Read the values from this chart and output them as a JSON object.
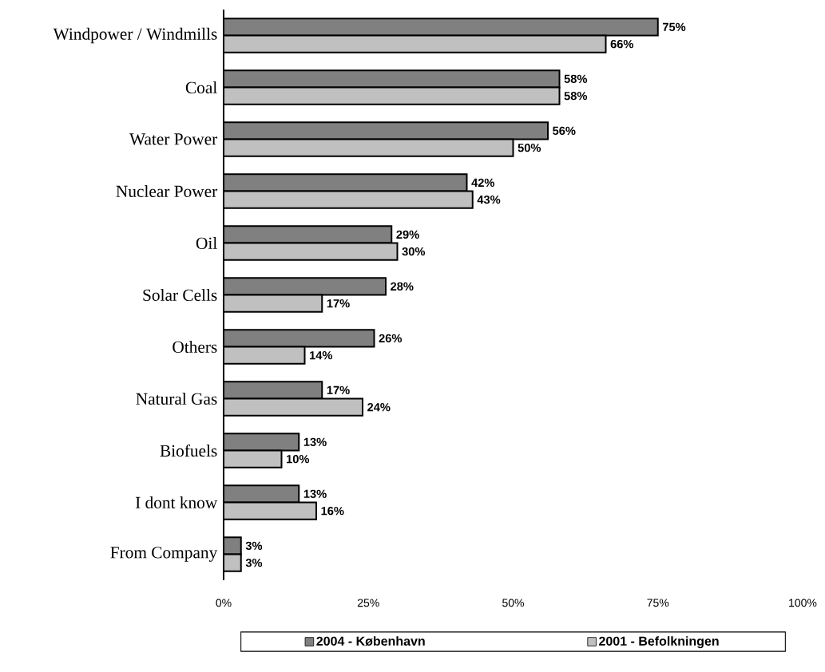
{
  "chart_data": {
    "type": "bar",
    "orientation": "horizontal",
    "categories": [
      "Windpower / Windmills",
      "Coal",
      "Water Power",
      "Nuclear Power",
      "Oil",
      "Solar Cells",
      "Others",
      "Natural Gas",
      "Biofuels",
      "I dont know",
      "From Company"
    ],
    "series": [
      {
        "name": "2004 - København",
        "color": "#808080",
        "values": [
          75,
          58,
          56,
          42,
          29,
          28,
          26,
          17,
          13,
          13,
          3
        ],
        "value_labels": [
          "75%",
          "58%",
          "56%",
          "42%",
          "29%",
          "28%",
          "26%",
          "17%",
          "13%",
          "13%",
          "3%"
        ]
      },
      {
        "name": "2001 - Befolkningen",
        "color": "#c0c0c0",
        "values": [
          66,
          58,
          50,
          43,
          30,
          17,
          14,
          24,
          10,
          16,
          3
        ],
        "value_labels": [
          "66%",
          "58%",
          "50%",
          "43%",
          "30%",
          "17%",
          "14%",
          "24%",
          "10%",
          "16%",
          "3%"
        ]
      }
    ],
    "xlim": [
      0,
      100
    ],
    "xticks": [
      {
        "value": 0,
        "label": "0%"
      },
      {
        "value": 25,
        "label": "25%"
      },
      {
        "value": 50,
        "label": "50%"
      },
      {
        "value": 75,
        "label": "75%"
      },
      {
        "value": 100,
        "label": "100%"
      }
    ],
    "grid": false,
    "legend": "bottom"
  }
}
